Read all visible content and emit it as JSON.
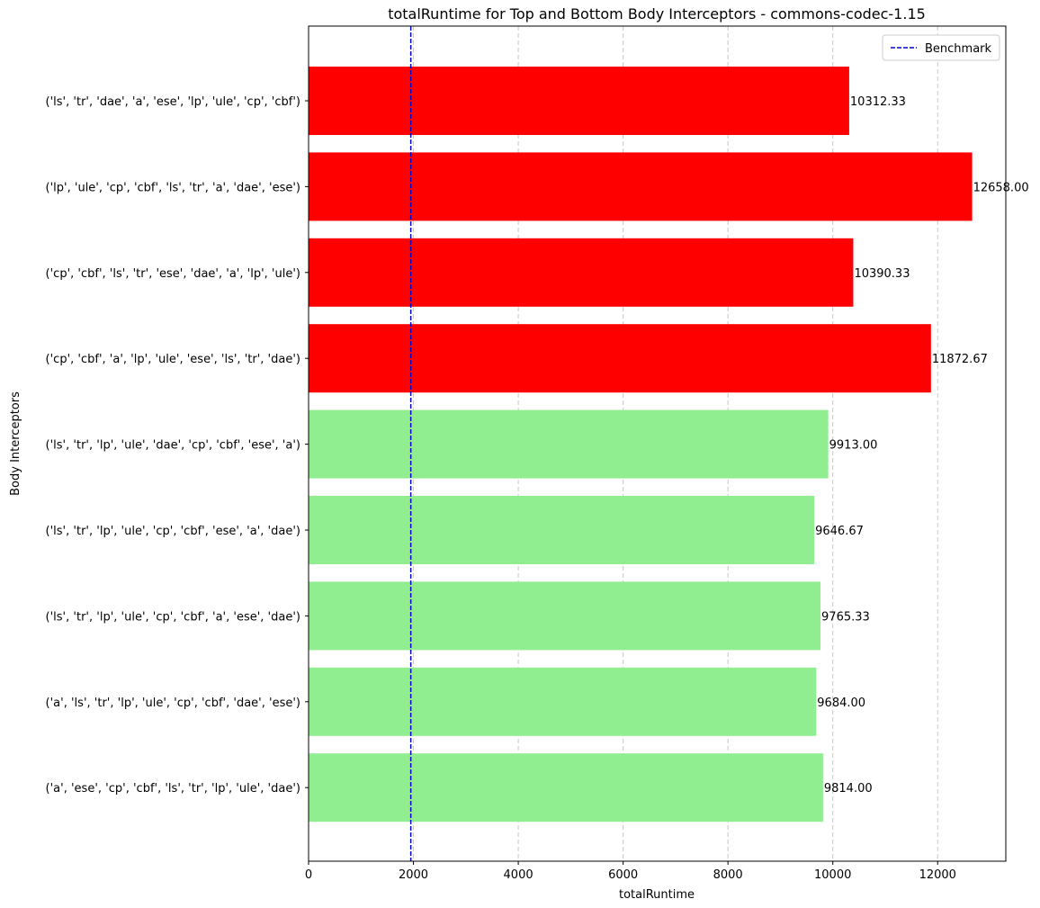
{
  "chart_data": {
    "type": "bar",
    "orientation": "horizontal",
    "title": "totalRuntime for Top and Bottom Body Interceptors - commons-codec-1.15",
    "xlabel": "totalRuntime",
    "ylabel": "Body Interceptors",
    "xlim": [
      0,
      13300
    ],
    "xticks": [
      0,
      2000,
      4000,
      6000,
      8000,
      10000,
      12000
    ],
    "grid": "x-dashed",
    "legend": {
      "placement": "top-right",
      "entries": [
        "Benchmark"
      ]
    },
    "benchmark": 1950,
    "colors": {
      "top": "#ff0000",
      "bottom": "#90ee90",
      "benchmark": "#0000cd",
      "grid": "#c8c8c8"
    },
    "bars": [
      {
        "label": "('ls', 'tr', 'dae', 'a', 'ese', 'lp', 'ule', 'cp', 'cbf')",
        "value": 10312.33,
        "value_label": "10312.33",
        "group": "top"
      },
      {
        "label": "('lp', 'ule', 'cp', 'cbf', 'ls', 'tr', 'a', 'dae', 'ese')",
        "value": 12658.0,
        "value_label": "12658.00",
        "group": "top"
      },
      {
        "label": "('cp', 'cbf', 'ls', 'tr', 'ese', 'dae', 'a', 'lp', 'ule')",
        "value": 10390.33,
        "value_label": "10390.33",
        "group": "top"
      },
      {
        "label": "('cp', 'cbf', 'a', 'lp', 'ule', 'ese', 'ls', 'tr', 'dae')",
        "value": 11872.67,
        "value_label": "11872.67",
        "group": "top"
      },
      {
        "label": "('ls', 'tr', 'lp', 'ule', 'dae', 'cp', 'cbf', 'ese', 'a')",
        "value": 9913.0,
        "value_label": "9913.00",
        "group": "bottom"
      },
      {
        "label": "('ls', 'tr', 'lp', 'ule', 'cp', 'cbf', 'ese', 'a', 'dae')",
        "value": 9646.67,
        "value_label": "9646.67",
        "group": "bottom"
      },
      {
        "label": "('ls', 'tr', 'lp', 'ule', 'cp', 'cbf', 'a', 'ese', 'dae')",
        "value": 9765.33,
        "value_label": "9765.33",
        "group": "bottom"
      },
      {
        "label": "('a', 'ls', 'tr', 'lp', 'ule', 'cp', 'cbf', 'dae', 'ese')",
        "value": 9684.0,
        "value_label": "9684.00",
        "group": "bottom"
      },
      {
        "label": "('a', 'ese', 'cp', 'cbf', 'ls', 'tr', 'lp', 'ule', 'dae')",
        "value": 9814.0,
        "value_label": "9814.00",
        "group": "bottom"
      }
    ]
  }
}
